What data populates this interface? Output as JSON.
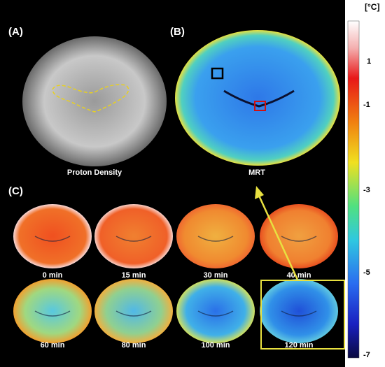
{
  "panels": {
    "a": {
      "label": "(A)",
      "caption": "Proton Density"
    },
    "b": {
      "label": "(B)",
      "caption": "MRT"
    },
    "c": {
      "label": "(C)",
      "times": [
        "0 min",
        "15 min",
        "30 min",
        "40 min",
        "60 min",
        "80 min",
        "100 min",
        "120 min"
      ]
    }
  },
  "colorbar": {
    "unit": "[°C]",
    "labels": [
      "1",
      "-1",
      "-3",
      "-5",
      "-7"
    ]
  }
}
